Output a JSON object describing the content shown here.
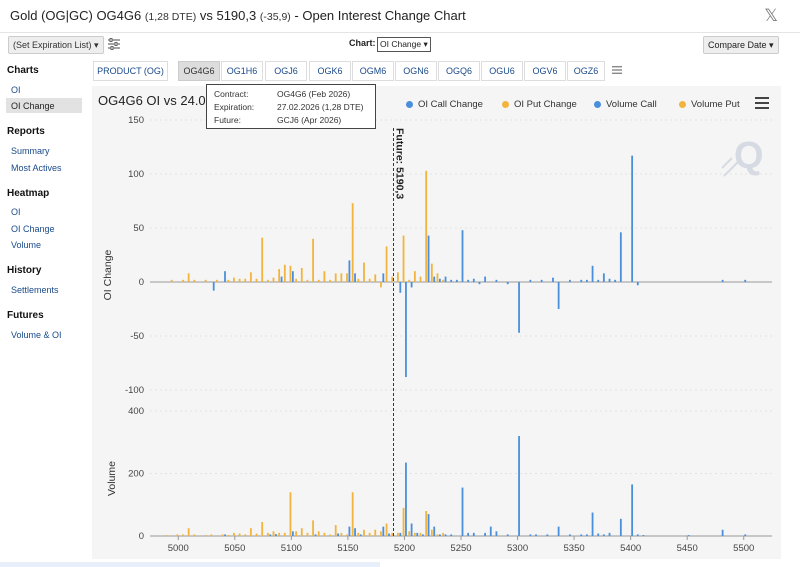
{
  "header": {
    "title_main": "Gold (OG|GC) OG4G6",
    "title_dte": "(1,28 DTE)",
    "title_vs": "vs 5190,3",
    "title_change": "(-35,9)",
    "title_suffix": "- Open Interest Change Chart",
    "close_glyph": "𝕏"
  },
  "toolbar": {
    "expiration_list": "(Set Expiration List) ▾",
    "chart_label": "Chart:",
    "chart_select_value": "OI Change",
    "compare_label": "Compare Date ▾"
  },
  "sidebar": {
    "charts_heading": "Charts",
    "charts_items": [
      "OI",
      "OI Change"
    ],
    "reports_heading": "Reports",
    "reports_items": [
      "Summary",
      "Most Actives"
    ],
    "heatmap_heading": "Heatmap",
    "heatmap_items": [
      "OI",
      "OI Change",
      "Volume"
    ],
    "history_heading": "History",
    "history_items": [
      "Settlements"
    ],
    "futures_heading": "Futures",
    "futures_items": [
      "Volume & OI"
    ]
  },
  "tabs": [
    "PRODUCT (OG)",
    "OG4G6",
    "OG1H6",
    "OGJ6",
    "OGK6",
    "OGM6",
    "OGN6",
    "OGQ6",
    "OGU6",
    "OGV6",
    "OGZ6"
  ],
  "active_tab": "OG4G6",
  "chart_title": "OG4G6 OI vs 24.02",
  "tooltip": {
    "contract_label": "Contract:",
    "contract_value": "OG4G6 (Feb 2026)",
    "expiration_label": "Expiration:",
    "expiration_value": "27.02.2026 (1,28 DTE)",
    "future_label": "Future:",
    "future_value": "GCJ6 (Apr 2026)"
  },
  "colors": {
    "call": "#4a8fdc",
    "put": "#f2b43c",
    "zero_line": "#999999",
    "future_line": "#222222"
  },
  "chart_data": [
    {
      "type": "bar",
      "ylabel": "OI Change",
      "ylim": [
        -100,
        150
      ],
      "yticks": [
        -100,
        -50,
        0,
        50,
        100,
        150
      ],
      "legend": [
        "OI Call Change",
        "OI Put Change"
      ],
      "future_marker": {
        "label": "Future: 5190,3",
        "x": 5190.3
      },
      "series": [
        {
          "name": "OI Call Change",
          "color": "#4a8fdc",
          "points": [
            [
              5030,
              -8
            ],
            [
              5040,
              10
            ],
            [
              5090,
              5
            ],
            [
              5100,
              10
            ],
            [
              5150,
              20
            ],
            [
              5155,
              8
            ],
            [
              5180,
              8
            ],
            [
              5195,
              -10
            ],
            [
              5200,
              -88
            ],
            [
              5205,
              -5
            ],
            [
              5220,
              43
            ],
            [
              5225,
              5
            ],
            [
              5230,
              3
            ],
            [
              5235,
              5
            ],
            [
              5240,
              2
            ],
            [
              5245,
              2
            ],
            [
              5250,
              48
            ],
            [
              5255,
              2
            ],
            [
              5260,
              3
            ],
            [
              5265,
              -2
            ],
            [
              5270,
              5
            ],
            [
              5280,
              2
            ],
            [
              5290,
              -2
            ],
            [
              5300,
              -47
            ],
            [
              5310,
              2
            ],
            [
              5320,
              2
            ],
            [
              5330,
              4
            ],
            [
              5335,
              -25
            ],
            [
              5345,
              2
            ],
            [
              5355,
              2
            ],
            [
              5360,
              2
            ],
            [
              5365,
              15
            ],
            [
              5370,
              2
            ],
            [
              5375,
              8
            ],
            [
              5380,
              3
            ],
            [
              5385,
              2
            ],
            [
              5390,
              46
            ],
            [
              5400,
              117
            ],
            [
              5405,
              -3
            ],
            [
              5480,
              2
            ],
            [
              5500,
              2
            ]
          ]
        },
        {
          "name": "OI Put Change",
          "color": "#f2b43c",
          "points": [
            [
              4995,
              2
            ],
            [
              5005,
              2
            ],
            [
              5010,
              8
            ],
            [
              5015,
              2
            ],
            [
              5025,
              2
            ],
            [
              5035,
              2
            ],
            [
              5045,
              2
            ],
            [
              5050,
              4
            ],
            [
              5055,
              3
            ],
            [
              5060,
              3
            ],
            [
              5065,
              9
            ],
            [
              5070,
              3
            ],
            [
              5075,
              41
            ],
            [
              5080,
              2
            ],
            [
              5085,
              4
            ],
            [
              5090,
              12
            ],
            [
              5095,
              16
            ],
            [
              5100,
              15
            ],
            [
              5105,
              3
            ],
            [
              5110,
              13
            ],
            [
              5115,
              2
            ],
            [
              5120,
              40
            ],
            [
              5125,
              2
            ],
            [
              5130,
              10
            ],
            [
              5135,
              2
            ],
            [
              5140,
              8
            ],
            [
              5145,
              8
            ],
            [
              5150,
              8
            ],
            [
              5155,
              73
            ],
            [
              5160,
              3
            ],
            [
              5165,
              18
            ],
            [
              5170,
              3
            ],
            [
              5175,
              7
            ],
            [
              5180,
              -5
            ],
            [
              5185,
              33
            ],
            [
              5190,
              5
            ],
            [
              5195,
              9
            ],
            [
              5200,
              43
            ],
            [
              5205,
              2
            ],
            [
              5210,
              10
            ],
            [
              5215,
              5
            ],
            [
              5220,
              103
            ],
            [
              5225,
              17
            ],
            [
              5230,
              8
            ],
            [
              5235,
              2
            ]
          ]
        }
      ]
    },
    {
      "type": "bar",
      "ylabel": "Volume",
      "ylim": [
        0,
        400
      ],
      "yticks": [
        0,
        200,
        400
      ],
      "xticks": [
        5000,
        5050,
        5100,
        5150,
        5200,
        5250,
        5300,
        5350,
        5400,
        5450,
        5500
      ],
      "legend": [
        "Volume Call",
        "Volume Put"
      ],
      "series": [
        {
          "name": "Volume Call",
          "color": "#4a8fdc",
          "points": [
            [
              5040,
              5
            ],
            [
              5080,
              5
            ],
            [
              5085,
              6
            ],
            [
              5100,
              15
            ],
            [
              5120,
              5
            ],
            [
              5140,
              8
            ],
            [
              5150,
              30
            ],
            [
              5155,
              25
            ],
            [
              5160,
              5
            ],
            [
              5180,
              30
            ],
            [
              5185,
              8
            ],
            [
              5195,
              10
            ],
            [
              5200,
              235
            ],
            [
              5205,
              40
            ],
            [
              5210,
              10
            ],
            [
              5215,
              5
            ],
            [
              5220,
              70
            ],
            [
              5225,
              30
            ],
            [
              5230,
              5
            ],
            [
              5235,
              5
            ],
            [
              5240,
              5
            ],
            [
              5250,
              155
            ],
            [
              5255,
              10
            ],
            [
              5260,
              10
            ],
            [
              5270,
              10
            ],
            [
              5275,
              30
            ],
            [
              5280,
              15
            ],
            [
              5290,
              5
            ],
            [
              5300,
              320
            ],
            [
              5310,
              5
            ],
            [
              5315,
              5
            ],
            [
              5325,
              5
            ],
            [
              5335,
              30
            ],
            [
              5345,
              5
            ],
            [
              5355,
              5
            ],
            [
              5360,
              5
            ],
            [
              5365,
              75
            ],
            [
              5370,
              8
            ],
            [
              5375,
              5
            ],
            [
              5380,
              10
            ],
            [
              5390,
              55
            ],
            [
              5400,
              165
            ],
            [
              5405,
              5
            ],
            [
              5410,
              3
            ],
            [
              5450,
              3
            ],
            [
              5480,
              20
            ],
            [
              5500,
              5
            ]
          ]
        },
        {
          "name": "Volume Put",
          "color": "#f2b43c",
          "points": [
            [
              4990,
              3
            ],
            [
              5000,
              5
            ],
            [
              5005,
              5
            ],
            [
              5010,
              25
            ],
            [
              5015,
              5
            ],
            [
              5025,
              3
            ],
            [
              5030,
              5
            ],
            [
              5040,
              5
            ],
            [
              5045,
              3
            ],
            [
              5050,
              10
            ],
            [
              5055,
              8
            ],
            [
              5060,
              5
            ],
            [
              5065,
              25
            ],
            [
              5070,
              8
            ],
            [
              5075,
              45
            ],
            [
              5080,
              10
            ],
            [
              5085,
              15
            ],
            [
              5090,
              10
            ],
            [
              5095,
              10
            ],
            [
              5100,
              140
            ],
            [
              5105,
              15
            ],
            [
              5110,
              25
            ],
            [
              5115,
              10
            ],
            [
              5120,
              50
            ],
            [
              5125,
              15
            ],
            [
              5130,
              10
            ],
            [
              5135,
              5
            ],
            [
              5140,
              35
            ],
            [
              5145,
              10
            ],
            [
              5150,
              5
            ],
            [
              5155,
              140
            ],
            [
              5160,
              10
            ],
            [
              5165,
              20
            ],
            [
              5170,
              10
            ],
            [
              5175,
              20
            ],
            [
              5180,
              15
            ],
            [
              5185,
              40
            ],
            [
              5190,
              10
            ],
            [
              5195,
              10
            ],
            [
              5200,
              90
            ],
            [
              5205,
              15
            ],
            [
              5210,
              10
            ],
            [
              5215,
              10
            ],
            [
              5220,
              80
            ],
            [
              5225,
              20
            ],
            [
              5230,
              5
            ],
            [
              5235,
              10
            ]
          ]
        }
      ]
    }
  ]
}
